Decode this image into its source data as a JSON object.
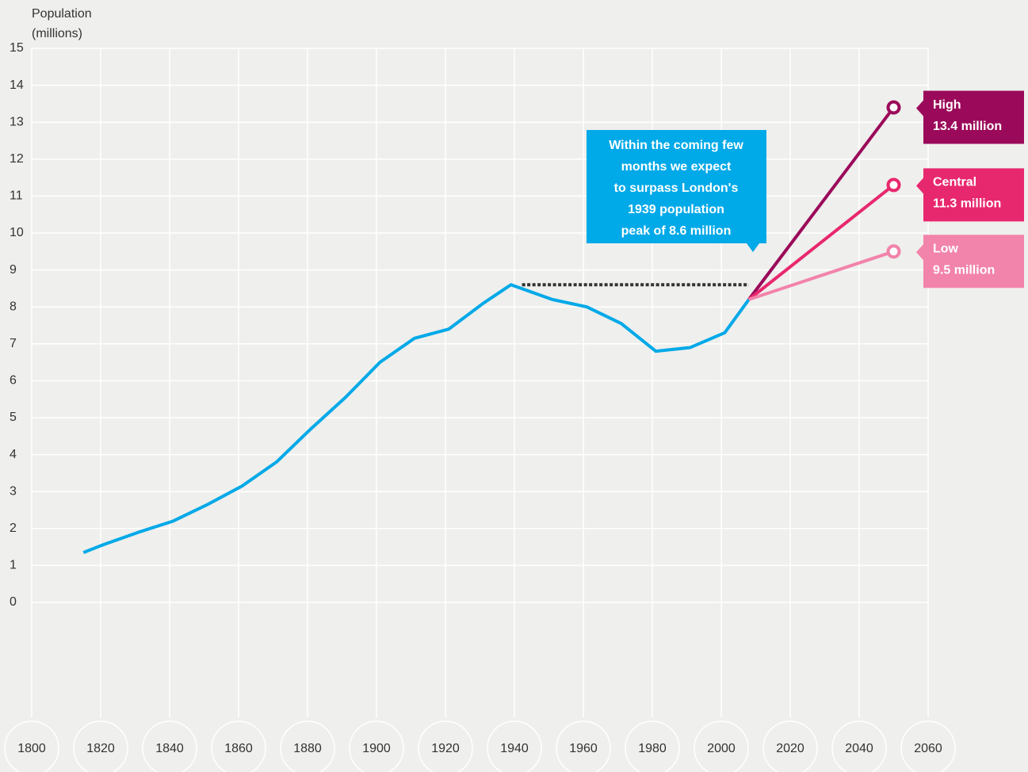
{
  "chart_data": {
    "type": "line",
    "ylabel": [
      "Population",
      "(millions)"
    ],
    "xlim": [
      1800,
      2060
    ],
    "xticks": [
      1800,
      1820,
      1840,
      1860,
      1880,
      1900,
      1920,
      1940,
      1960,
      1980,
      2000,
      2020,
      2040,
      2060
    ],
    "ylim": [
      0,
      15
    ],
    "yticks": [
      0,
      1,
      2,
      3,
      4,
      5,
      6,
      7,
      8,
      9,
      10,
      11,
      12,
      13,
      14,
      15
    ],
    "grid": true,
    "series": [
      {
        "name": "Population",
        "color": "#00a9e8",
        "x": [
          1815,
          1821,
          1831,
          1841,
          1851,
          1861,
          1871,
          1881,
          1891,
          1901,
          1911,
          1921,
          1931,
          1939,
          1951,
          1961,
          1971,
          1981,
          1991,
          2001,
          2008
        ],
        "values": [
          1.35,
          1.57,
          1.9,
          2.2,
          2.65,
          3.15,
          3.8,
          4.7,
          5.55,
          6.5,
          7.15,
          7.4,
          8.1,
          8.6,
          8.2,
          8.0,
          7.55,
          6.8,
          6.9,
          7.3,
          8.2
        ]
      },
      {
        "name": "High",
        "color": "#9b0a5a",
        "x": [
          2008,
          2050
        ],
        "values": [
          8.2,
          13.4
        ],
        "value_labels": [
          null,
          "13.4 million"
        ]
      },
      {
        "name": "Central",
        "color": "#e8286e",
        "x": [
          2008,
          2050
        ],
        "values": [
          8.2,
          11.3
        ],
        "value_labels": [
          null,
          "11.3 million"
        ]
      },
      {
        "name": "Low",
        "color": "#f283aa",
        "x": [
          2008,
          2050
        ],
        "values": [
          8.2,
          9.5
        ],
        "value_labels": [
          null,
          "9.5 million"
        ]
      }
    ],
    "reference_line": {
      "x": [
        1939,
        2008
      ],
      "value": 8.6,
      "color": "#333333"
    },
    "annotation": {
      "color": "#00a9e8",
      "lines": [
        "Within the coming few",
        "months we expect",
        "to surpass London's",
        "1939 population",
        "peak of 8.6 million"
      ]
    }
  }
}
